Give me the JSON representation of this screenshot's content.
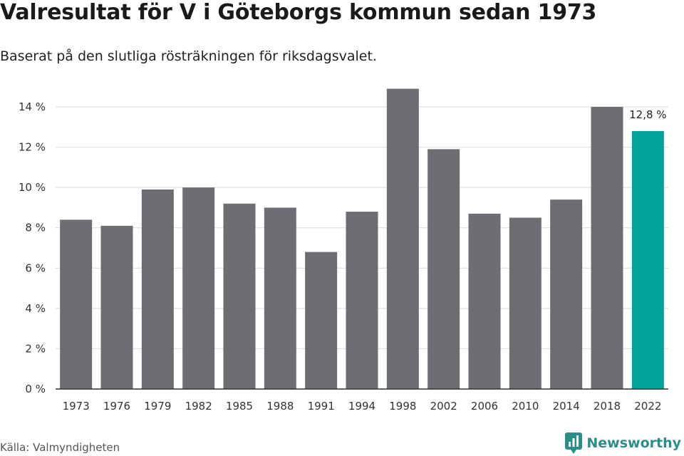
{
  "title": "Valresultat för V i Göteborgs kommun sedan 1973",
  "subtitle": "Baserat på den slutliga rösträkningen för riksdagsvalet.",
  "source": "Källa: Valmyndigheten",
  "brand": {
    "name": "Newsworthy",
    "color": "#2a8f89",
    "icon": "newsworthy-logo-icon"
  },
  "colors": {
    "bar": "#6e6d73",
    "highlight": "#00a398",
    "grid": "#d9d9d9",
    "axis": "#333333"
  },
  "chart_data": {
    "type": "bar",
    "categories": [
      "1973",
      "1976",
      "1979",
      "1982",
      "1985",
      "1988",
      "1991",
      "1994",
      "1998",
      "2002",
      "2006",
      "2010",
      "2014",
      "2018",
      "2022"
    ],
    "values": [
      8.4,
      8.1,
      9.9,
      10.0,
      9.2,
      9.0,
      6.8,
      8.8,
      14.9,
      11.9,
      8.7,
      8.5,
      9.4,
      14.0,
      12.8
    ],
    "highlight_index": 14,
    "annotation": "12,8 %",
    "yticks": [
      0,
      2,
      4,
      6,
      8,
      10,
      12,
      14
    ],
    "ytick_labels": [
      "0 %",
      "2 %",
      "4 %",
      "6 %",
      "8 %",
      "10 %",
      "12 %",
      "14 %"
    ],
    "ylim": [
      0,
      14
    ],
    "grid": true,
    "xlabel": "",
    "ylabel": ""
  }
}
